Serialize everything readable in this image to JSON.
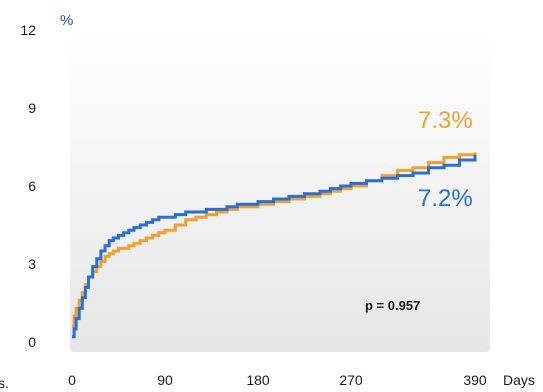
{
  "chart_data": {
    "type": "line",
    "step": true,
    "ylabel": "%",
    "xlabel": "Days",
    "xlim": [
      0,
      390
    ],
    "ylim": [
      0,
      12
    ],
    "xticks": [
      0,
      90,
      180,
      270,
      390
    ],
    "yticks": [
      0,
      3,
      6,
      9,
      12
    ],
    "grid": false,
    "legend": "none",
    "annotation": "p = 0.957",
    "edge_fragment": "s.",
    "series": [
      {
        "color": "#f0a030",
        "end_label": "7.3%",
        "x": [
          0,
          2,
          4,
          7,
          10,
          13,
          16,
          20,
          24,
          28,
          32,
          36,
          40,
          45,
          50,
          55,
          60,
          66,
          72,
          78,
          84,
          90,
          100,
          110,
          120,
          130,
          140,
          150,
          160,
          170,
          180,
          195,
          210,
          225,
          240,
          250,
          260,
          270,
          285,
          300,
          315,
          330,
          345,
          360,
          375,
          390
        ],
        "y": [
          0.6,
          1.0,
          1.3,
          1.6,
          1.9,
          2.2,
          2.5,
          2.7,
          2.9,
          3.1,
          3.3,
          3.4,
          3.5,
          3.6,
          3.6,
          3.7,
          3.8,
          3.9,
          4.0,
          4.1,
          4.2,
          4.3,
          4.5,
          4.7,
          4.8,
          4.9,
          5.0,
          5.1,
          5.2,
          5.2,
          5.3,
          5.4,
          5.5,
          5.6,
          5.7,
          5.8,
          5.9,
          6.0,
          6.2,
          6.4,
          6.6,
          6.7,
          6.9,
          7.1,
          7.2,
          7.3
        ]
      },
      {
        "color": "#2a6fd6",
        "end_label": "7.2%",
        "x": [
          0,
          2,
          4,
          7,
          10,
          13,
          16,
          20,
          24,
          28,
          32,
          36,
          40,
          45,
          50,
          55,
          60,
          66,
          72,
          78,
          84,
          90,
          100,
          110,
          120,
          130,
          140,
          150,
          160,
          170,
          180,
          195,
          210,
          225,
          240,
          250,
          260,
          270,
          285,
          300,
          315,
          330,
          345,
          360,
          375,
          390
        ],
        "y": [
          0.2,
          0.5,
          0.9,
          1.3,
          1.7,
          2.1,
          2.5,
          2.9,
          3.2,
          3.5,
          3.7,
          3.9,
          4.0,
          4.1,
          4.2,
          4.3,
          4.4,
          4.5,
          4.6,
          4.7,
          4.8,
          4.8,
          4.9,
          5.0,
          5.0,
          5.1,
          5.1,
          5.2,
          5.3,
          5.3,
          5.4,
          5.5,
          5.6,
          5.7,
          5.8,
          5.9,
          6.0,
          6.1,
          6.2,
          6.3,
          6.4,
          6.5,
          6.7,
          6.8,
          7.0,
          7.2
        ]
      }
    ]
  }
}
